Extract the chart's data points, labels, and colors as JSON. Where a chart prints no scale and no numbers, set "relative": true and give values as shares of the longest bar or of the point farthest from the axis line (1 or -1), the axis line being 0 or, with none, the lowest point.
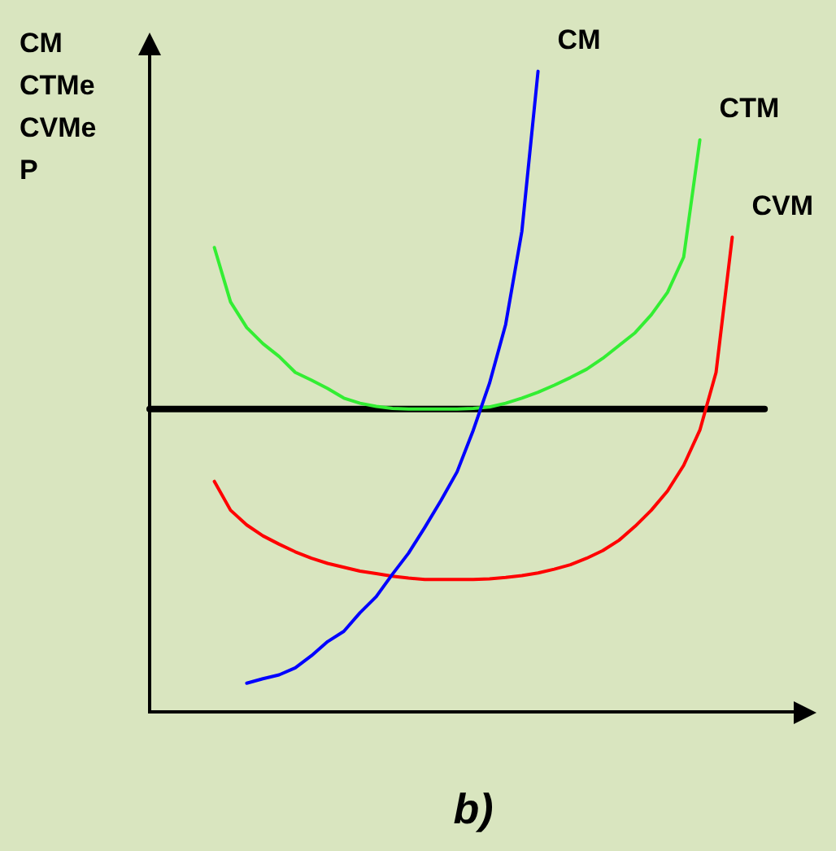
{
  "chart_data": {
    "type": "line",
    "relative": true,
    "xlabel": "b)",
    "ylabel": "CM\nCTMe\nCVMe\nP",
    "legend": false,
    "marker": "none",
    "line_style": "solid",
    "categories": [
      null,
      null,
      null,
      null,
      null,
      null,
      null,
      null,
      null,
      null,
      null,
      null,
      null,
      null,
      null,
      null,
      null,
      null,
      null,
      null,
      null,
      null,
      null,
      null,
      null,
      null,
      null,
      null,
      null,
      null,
      null,
      null,
      null,
      null,
      null,
      null,
      null,
      null,
      null,
      null,
      null
    ],
    "series": [
      {
        "name": "CM",
        "color": "#0000ff",
        "values": [
          null,
          null,
          null,
          null,
          null,
          null,
          0.045,
          0.052,
          0.058,
          0.069,
          0.088,
          0.11,
          0.126,
          0.155,
          0.18,
          0.215,
          0.248,
          0.288,
          0.33,
          0.375,
          0.44,
          0.513,
          0.605,
          0.75,
          1,
          null,
          null,
          null,
          null,
          null,
          null,
          null,
          null,
          null,
          null,
          null,
          null,
          null,
          null,
          null,
          null
        ]
      },
      {
        "name": "CTM",
        "color": "#33ee33",
        "values": [
          null,
          null,
          null,
          null,
          0.725,
          0.64,
          0.6,
          0.575,
          0.555,
          0.53,
          0.518,
          0.505,
          0.49,
          0.482,
          0.477,
          0.474,
          0.473,
          0.473,
          0.473,
          0.473,
          0.474,
          0.476,
          0.482,
          0.49,
          0.499,
          0.51,
          0.522,
          0.535,
          0.552,
          0.572,
          0.592,
          0.62,
          0.655,
          0.71,
          0.893,
          null,
          null,
          null,
          null,
          null,
          null
        ]
      },
      {
        "name": "CVM",
        "color": "#ff0000",
        "values": [
          null,
          null,
          null,
          null,
          0.36,
          0.315,
          0.292,
          0.275,
          0.262,
          0.25,
          0.24,
          0.232,
          0.226,
          0.22,
          0.216,
          0.212,
          0.209,
          0.207,
          0.207,
          0.207,
          0.207,
          0.208,
          0.21,
          0.213,
          0.217,
          0.223,
          0.23,
          0.24,
          0.252,
          0.268,
          0.29,
          0.315,
          0.345,
          0.385,
          0.44,
          0.53,
          0.741,
          null,
          null,
          null,
          null
        ]
      },
      {
        "color": "#000000",
        "values": [
          0.473,
          0.473,
          0.473,
          0.473,
          0.473,
          0.473,
          0.473,
          0.473,
          0.473,
          0.473,
          0.473,
          0.473,
          0.473,
          0.473,
          0.473,
          0.473,
          0.473,
          0.473,
          0.473,
          0.473,
          0.473,
          0.473,
          0.473,
          0.473,
          0.473,
          0.473,
          0.473,
          0.473,
          0.473,
          0.473,
          0.473,
          0.473,
          0.473,
          0.473,
          0.473,
          0.473,
          0.473,
          0.473,
          0.473,
          null,
          null
        ]
      }
    ]
  }
}
